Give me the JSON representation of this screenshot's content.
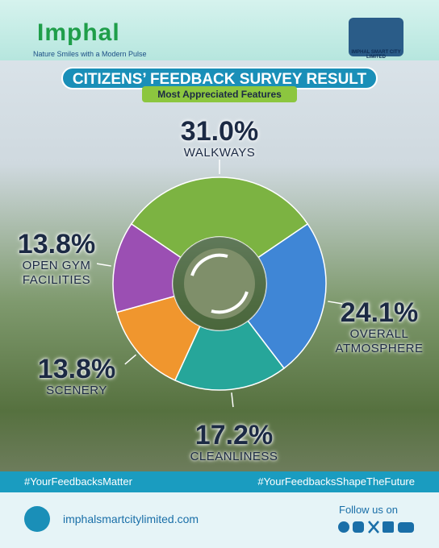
{
  "header": {
    "logo": "Imphal",
    "tagline": "Nature Smiles with a Modern Pulse",
    "partner_logo": "IMPHAL SMART CITY LIMITED"
  },
  "chart_data": {
    "type": "pie",
    "title": "CITIZENS’ FEEDBACK SURVEY RESULT",
    "subtitle": "Most Appreciated Features",
    "categories": [
      "WALKWAYS",
      "OVERALL ATMOSPHERE",
      "CLEANLINESS",
      "SCENERY",
      "OPEN GYM FACILITIES"
    ],
    "values": [
      31.0,
      24.1,
      17.2,
      13.8,
      13.8
    ],
    "value_labels": [
      "31.0%",
      "24.1%",
      "17.2%",
      "13.8%",
      "13.8%"
    ],
    "colors": [
      "#7cb342",
      "#3f86d6",
      "#26a69a",
      "#f0962e",
      "#9b4fb3"
    ],
    "donut": true
  },
  "footer": {
    "hashtags": [
      "#YourFeedbacksMatter",
      "#YourFeedbacksShapeTheFuture"
    ],
    "website": "imphalsmartcitylimited.com",
    "follow": "Follow us on"
  }
}
